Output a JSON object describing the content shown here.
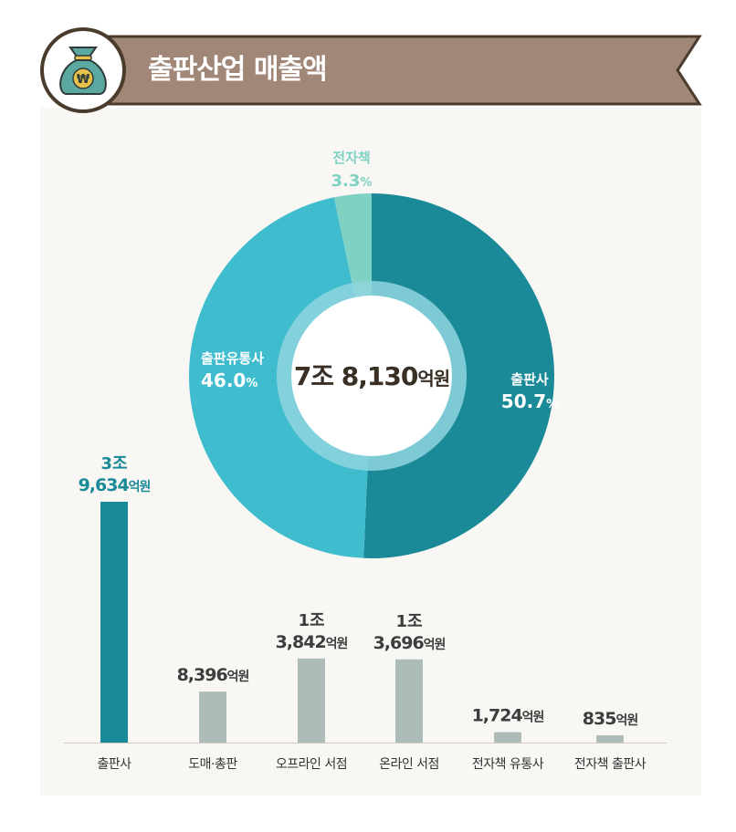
{
  "header": {
    "title": "출판산업 매출액",
    "icon": "money-bag-icon",
    "icon_symbol": "₩"
  },
  "colors": {
    "banner": "#a08778",
    "banner_dark": "#4a3b2c",
    "publisher": "#1a8a99",
    "distributor": "#3fbcce",
    "ebook": "#7fd1c4",
    "bar_gray": "#adbcb9",
    "text_dark": "#3d3d3d",
    "text_teal": "#1a8a99"
  },
  "chart_data": [
    {
      "type": "pie",
      "center_value": "7조 8,130",
      "center_unit": "억원",
      "slices": [
        {
          "label": "출판사",
          "percent_text": "50.7",
          "percent_sign": "%",
          "value": 50.7,
          "color": "#1a8a99"
        },
        {
          "label": "출판유통사",
          "percent_text": "46.0",
          "percent_sign": "%",
          "value": 46.0,
          "color": "#3fbcce"
        },
        {
          "label": "전자책",
          "percent_text": "3.3",
          "percent_sign": "%",
          "value": 3.3,
          "color": "#7fd1c4"
        }
      ]
    },
    {
      "type": "bar",
      "categories": [
        "출판사",
        "도매·총판",
        "오프라인 서점",
        "온라인 서점",
        "전자책 유통사",
        "전자책 출판사"
      ],
      "values": [
        39634,
        8396,
        13842,
        13696,
        1724,
        835
      ],
      "value_labels": [
        {
          "line1": "3조",
          "num": "9,634",
          "unit": "억원"
        },
        {
          "line1": "",
          "num": "8,396",
          "unit": "억원"
        },
        {
          "line1": "1조",
          "num": "3,842",
          "unit": "억원"
        },
        {
          "line1": "1조",
          "num": "3,696",
          "unit": "억원"
        },
        {
          "line1": "",
          "num": "1,724",
          "unit": "억원"
        },
        {
          "line1": "",
          "num": "835",
          "unit": "억원"
        }
      ],
      "highlight_index": 0
    }
  ]
}
